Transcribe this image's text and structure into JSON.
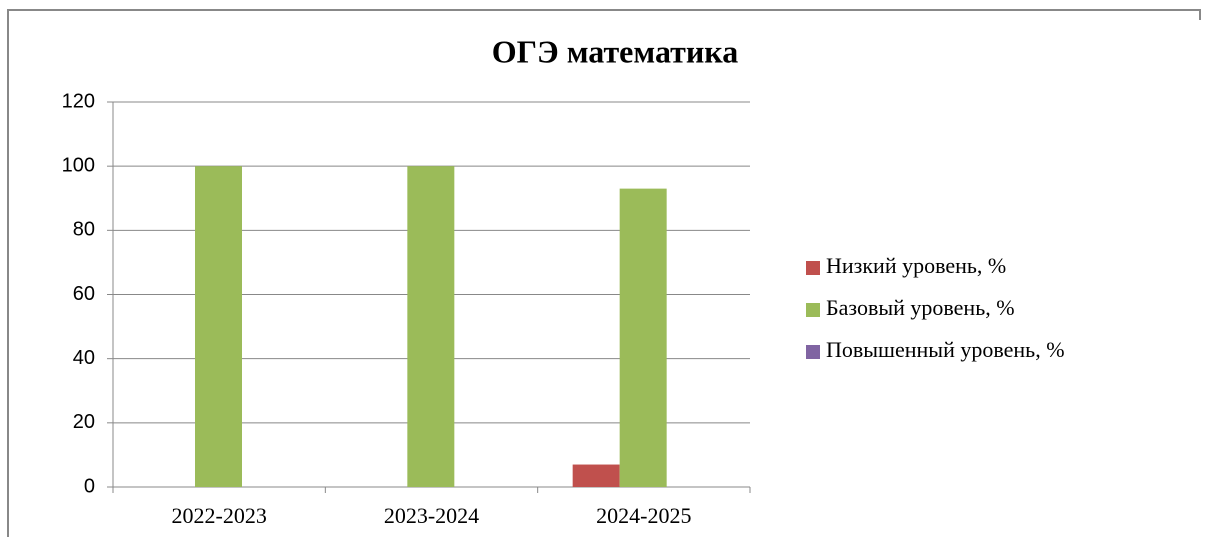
{
  "chart_data": {
    "type": "bar",
    "title": "ОГЭ математика",
    "categories": [
      "2022-2023",
      "2023-2024",
      "2024-2025"
    ],
    "series": [
      {
        "name": "Низкий уровень, %",
        "color": "#c0504d",
        "values": [
          0,
          0,
          7
        ]
      },
      {
        "name": "Базовый уровень, %",
        "color": "#9bbb59",
        "values": [
          100,
          100,
          93
        ]
      },
      {
        "name": "Повышенный уровень, %",
        "color": "#8064a2",
        "values": [
          0,
          0,
          0
        ]
      }
    ],
    "ylim": [
      0,
      120
    ],
    "yticks": [
      0,
      20,
      40,
      60,
      80,
      100,
      120
    ],
    "grid": true,
    "legend": "right"
  }
}
